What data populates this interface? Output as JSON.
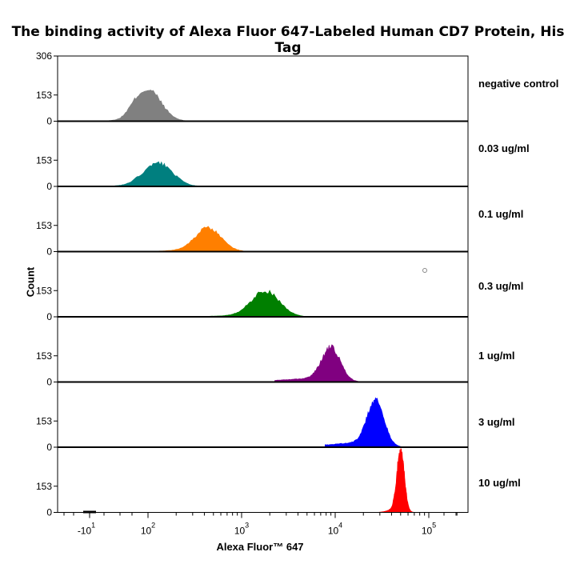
{
  "chart_data": {
    "type": "histogram-overlay",
    "title": "The binding activity of Alexa Fluor 647-Labeled Human CD7 Protein, His Tag",
    "xlabel": "Alexa Fluor™ 647",
    "ylabel": "Count",
    "x_scale": "biexponential",
    "x_tick_labels": [
      {
        "base": "-10",
        "exp": "1",
        "value": -10
      },
      {
        "base": "10",
        "exp": "2",
        "value": 100
      },
      {
        "base": "10",
        "exp": "3",
        "value": 1000
      },
      {
        "base": "10",
        "exp": "4",
        "value": 10000
      },
      {
        "base": "10",
        "exp": "5",
        "value": 100000
      }
    ],
    "y_top_label": "306",
    "y_tick_labels": [
      "153",
      "0"
    ],
    "ylim": [
      0,
      306
    ],
    "grid": false,
    "series": [
      {
        "name": "negative control",
        "color": "#808080",
        "peak_x": 100,
        "peak_count": 150
      },
      {
        "name": "0.03 ug/ml",
        "color": "#007f7f",
        "peak_x": 130,
        "peak_count": 110
      },
      {
        "name": "0.1 ug/ml",
        "color": "#ff7f00",
        "peak_x": 440,
        "peak_count": 112
      },
      {
        "name": "0.3 ug/ml",
        "color": "#007f00",
        "peak_x": 1800,
        "peak_count": 122
      },
      {
        "name": "1 ug/ml",
        "color": "#800080",
        "peak_x": 9000,
        "peak_count": 160
      },
      {
        "name": "3 ug/ml",
        "color": "#0000ff",
        "peak_x": 27000,
        "peak_count": 220
      },
      {
        "name": "10 ug/ml",
        "color": "#ff0000",
        "peak_x": 50000,
        "peak_count": 300
      }
    ]
  }
}
